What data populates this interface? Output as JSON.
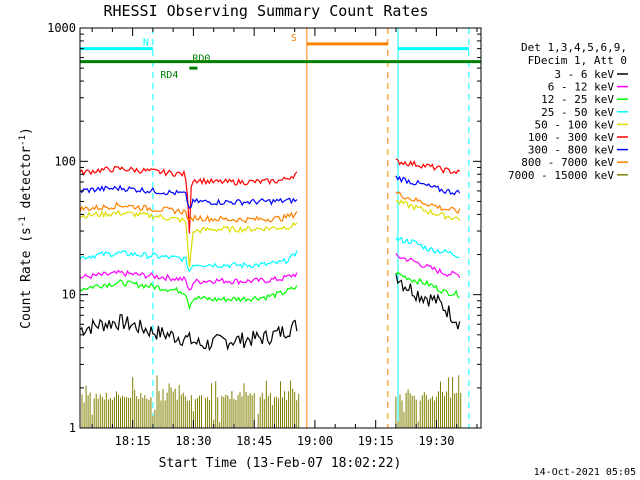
{
  "chart_data": {
    "type": "line",
    "title": "RHESSI Observing Summary Count Rates",
    "xlabel": "Start Time (13-Feb-07 18:02:22)",
    "ylabel": "Count Rate (s",
    "ylabel_sup": "-1",
    "ylabel_mid": " detector",
    "ylabel_end": ")",
    "y_scale": "log",
    "xlim_minutes": [
      0,
      99
    ],
    "ylim": [
      1,
      1000
    ],
    "y_ticks": [
      {
        "value": 1,
        "label": "1"
      },
      {
        "value": 10,
        "label": "10"
      },
      {
        "value": 100,
        "label": "100"
      },
      {
        "value": 1000,
        "label": "1000"
      }
    ],
    "x_ticks": [
      {
        "minute": 13,
        "label": "18:15"
      },
      {
        "minute": 28,
        "label": "18:30"
      },
      {
        "minute": 43,
        "label": "18:45"
      },
      {
        "minute": 58,
        "label": "19:00"
      },
      {
        "minute": 73,
        "label": "19:15"
      },
      {
        "minute": 88,
        "label": "19:30"
      }
    ],
    "legend_header": [
      "Det 1,3,4,5,6,9,",
      "FDecim 1, Att 0"
    ],
    "legend_placement": "right",
    "series": [
      {
        "name": "3 - 6 keV",
        "color": "#000000",
        "segments": [
          [
            [
              0,
              5.5
            ],
            [
              5,
              6
            ],
            [
              10,
              6.3
            ],
            [
              18,
              5.3
            ],
            [
              26,
              4.7
            ],
            [
              30,
              4.2
            ],
            [
              35,
              4.5
            ],
            [
              40,
              4.6
            ],
            [
              46,
              4.8
            ],
            [
              50,
              5.3
            ],
            [
              54,
              6.0
            ]
          ],
          [
            [
              78,
              14.5
            ],
            [
              80,
              12
            ],
            [
              84,
              10
            ],
            [
              88,
              9
            ],
            [
              91,
              7.5
            ],
            [
              94,
              6
            ]
          ]
        ]
      },
      {
        "name": "6 - 12 keV",
        "color": "#ff00ff",
        "segments": [
          [
            [
              0,
              13.5
            ],
            [
              5,
              14
            ],
            [
              10,
              14.5
            ],
            [
              18,
              13.8
            ],
            [
              26,
              13
            ],
            [
              27,
              10.5
            ],
            [
              28,
              12.5
            ],
            [
              33,
              12.8
            ],
            [
              40,
              12.6
            ],
            [
              46,
              12.8
            ],
            [
              50,
              13.2
            ],
            [
              54,
              14.5
            ]
          ],
          [
            [
              78,
              19.5
            ],
            [
              82,
              18
            ],
            [
              86,
              16
            ],
            [
              90,
              14.5
            ],
            [
              94,
              14
            ]
          ]
        ]
      },
      {
        "name": "12 - 25 keV",
        "color": "#00ff00",
        "segments": [
          [
            [
              0,
              11
            ],
            [
              5,
              11.8
            ],
            [
              10,
              12.3
            ],
            [
              18,
              11.5
            ],
            [
              26,
              10.5
            ],
            [
              27,
              8.2
            ],
            [
              28,
              9.5
            ],
            [
              33,
              9.2
            ],
            [
              40,
              9.3
            ],
            [
              46,
              9.6
            ],
            [
              50,
              10.3
            ],
            [
              54,
              11.5
            ]
          ],
          [
            [
              78,
              14.5
            ],
            [
              82,
              13
            ],
            [
              86,
              12
            ],
            [
              90,
              10.5
            ],
            [
              94,
              10
            ]
          ]
        ]
      },
      {
        "name": "25 - 50 keV",
        "color": "#00ffff",
        "segments": [
          [
            [
              0,
              19
            ],
            [
              5,
              20
            ],
            [
              10,
              20.5
            ],
            [
              18,
              19.5
            ],
            [
              26,
              18.5
            ],
            [
              27,
              15
            ],
            [
              28,
              17
            ],
            [
              33,
              16.8
            ],
            [
              40,
              16.6
            ],
            [
              46,
              16.8
            ],
            [
              50,
              17.5
            ],
            [
              53,
              19.5
            ],
            [
              54,
              25
            ]
          ],
          [
            [
              78,
              26
            ],
            [
              82,
              25
            ],
            [
              86,
              22
            ],
            [
              90,
              21
            ],
            [
              94,
              19.5
            ]
          ]
        ]
      },
      {
        "name": "50 - 100 keV",
        "color": "#dddd00",
        "segments": [
          [
            [
              0,
              39
            ],
            [
              5,
              40
            ],
            [
              10,
              41
            ],
            [
              18,
              39
            ],
            [
              26,
              36
            ],
            [
              27,
              16
            ],
            [
              28,
              30
            ],
            [
              33,
              31
            ],
            [
              40,
              31
            ],
            [
              46,
              31.5
            ],
            [
              50,
              32
            ],
            [
              53,
              33
            ],
            [
              54,
              38
            ]
          ],
          [
            [
              78,
              50
            ],
            [
              82,
              46
            ],
            [
              86,
              42
            ],
            [
              90,
              39
            ],
            [
              94,
              37
            ]
          ]
        ]
      },
      {
        "name": "100 - 300 keV",
        "color": "#ff0000",
        "segments": [
          [
            [
              0,
              82
            ],
            [
              5,
              86
            ],
            [
              10,
              88
            ],
            [
              18,
              84
            ],
            [
              26,
              80
            ],
            [
              27,
              30
            ],
            [
              27.5,
              70
            ],
            [
              28,
              73
            ],
            [
              33,
              70
            ],
            [
              40,
              70
            ],
            [
              46,
              70.5
            ],
            [
              50,
              72
            ],
            [
              54,
              82
            ]
          ],
          [
            [
              78,
              100
            ],
            [
              82,
              96
            ],
            [
              86,
              92
            ],
            [
              90,
              86
            ],
            [
              94,
              82
            ]
          ]
        ]
      },
      {
        "name": "300 - 800 keV",
        "color": "#0000ff",
        "segments": [
          [
            [
              0,
              60
            ],
            [
              5,
              62
            ],
            [
              10,
              63
            ],
            [
              18,
              60
            ],
            [
              26,
              57
            ],
            [
              27,
              44
            ],
            [
              28,
              50
            ],
            [
              33,
              49.5
            ],
            [
              40,
              49.5
            ],
            [
              46,
              50
            ],
            [
              50,
              50.5
            ],
            [
              54,
              51
            ]
          ],
          [
            [
              78,
              76
            ],
            [
              82,
              70
            ],
            [
              86,
              65
            ],
            [
              90,
              60
            ],
            [
              94,
              58
            ]
          ]
        ]
      },
      {
        "name": "800 - 7000 keV",
        "color": "#ff8000",
        "segments": [
          [
            [
              0,
              44
            ],
            [
              5,
              45
            ],
            [
              10,
              47
            ],
            [
              18,
              44
            ],
            [
              26,
              42
            ],
            [
              27,
              35
            ],
            [
              28,
              38
            ],
            [
              33,
              37
            ],
            [
              40,
              36.5
            ],
            [
              46,
              37
            ],
            [
              50,
              37.5
            ],
            [
              53,
              40
            ],
            [
              54,
              45
            ]
          ],
          [
            [
              78,
              58
            ],
            [
              82,
              52
            ],
            [
              86,
              48
            ],
            [
              90,
              44
            ],
            [
              94,
              42
            ]
          ]
        ]
      },
      {
        "name": "7000 - 15000 keV",
        "color": "#808000",
        "segments": [
          [
            [
              0,
              1
            ],
            [
              54,
              1
            ]
          ],
          [
            [
              78,
              1
            ],
            [
              94,
              1
            ]
          ]
        ]
      }
    ],
    "state_bars": [
      {
        "label": "N",
        "color": "#00ffff",
        "segments": [
          [
            0,
            18
          ],
          [
            78.5,
            96
          ]
        ],
        "value": 700
      },
      {
        "label": "S",
        "color": "#ff8000",
        "segments": [
          [
            56,
            76
          ]
        ],
        "value": 760
      }
    ],
    "lines": [
      {
        "label": "RD0",
        "color": "#008000",
        "minute": 27,
        "value": 560
      },
      {
        "label": "RD4",
        "color": "#008000",
        "minute": 27,
        "value": 500
      }
    ],
    "footer_date": "14-Oct-2021 05:05"
  }
}
